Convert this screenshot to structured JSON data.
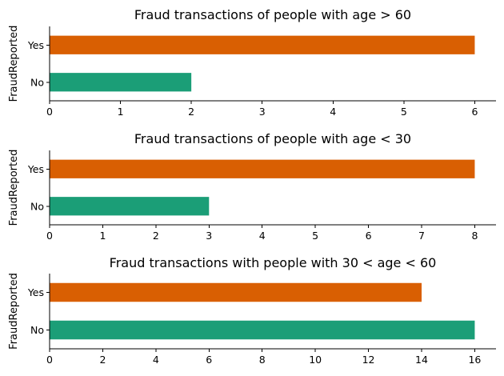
{
  "chart_data": [
    {
      "type": "bar",
      "orientation": "horizontal",
      "title": "Fraud transactions of people with age > 60",
      "ylabel": "FraudReported",
      "xlabel": "",
      "categories": [
        "No",
        "Yes"
      ],
      "values": [
        2,
        6
      ],
      "colors": [
        "#1b9e77",
        "#d95f02"
      ],
      "xlim": [
        0,
        6.3
      ],
      "xticks": [
        0,
        1,
        2,
        3,
        4,
        5,
        6
      ],
      "grid": false
    },
    {
      "type": "bar",
      "orientation": "horizontal",
      "title": "Fraud transactions of people with age < 30",
      "ylabel": "FraudReported",
      "xlabel": "",
      "categories": [
        "No",
        "Yes"
      ],
      "values": [
        3,
        8
      ],
      "colors": [
        "#1b9e77",
        "#d95f02"
      ],
      "xlim": [
        0,
        8.4
      ],
      "xticks": [
        0,
        1,
        2,
        3,
        4,
        5,
        6,
        7,
        8
      ],
      "grid": false
    },
    {
      "type": "bar",
      "orientation": "horizontal",
      "title": "Fraud transactions with people with 30 < age < 60",
      "ylabel": "FraudReported",
      "xlabel": "",
      "categories": [
        "No",
        "Yes"
      ],
      "values": [
        16,
        14
      ],
      "colors": [
        "#1b9e77",
        "#d95f02"
      ],
      "xlim": [
        0,
        16.8
      ],
      "xticks": [
        0,
        2,
        4,
        6,
        8,
        10,
        12,
        14,
        16
      ],
      "grid": false
    }
  ]
}
